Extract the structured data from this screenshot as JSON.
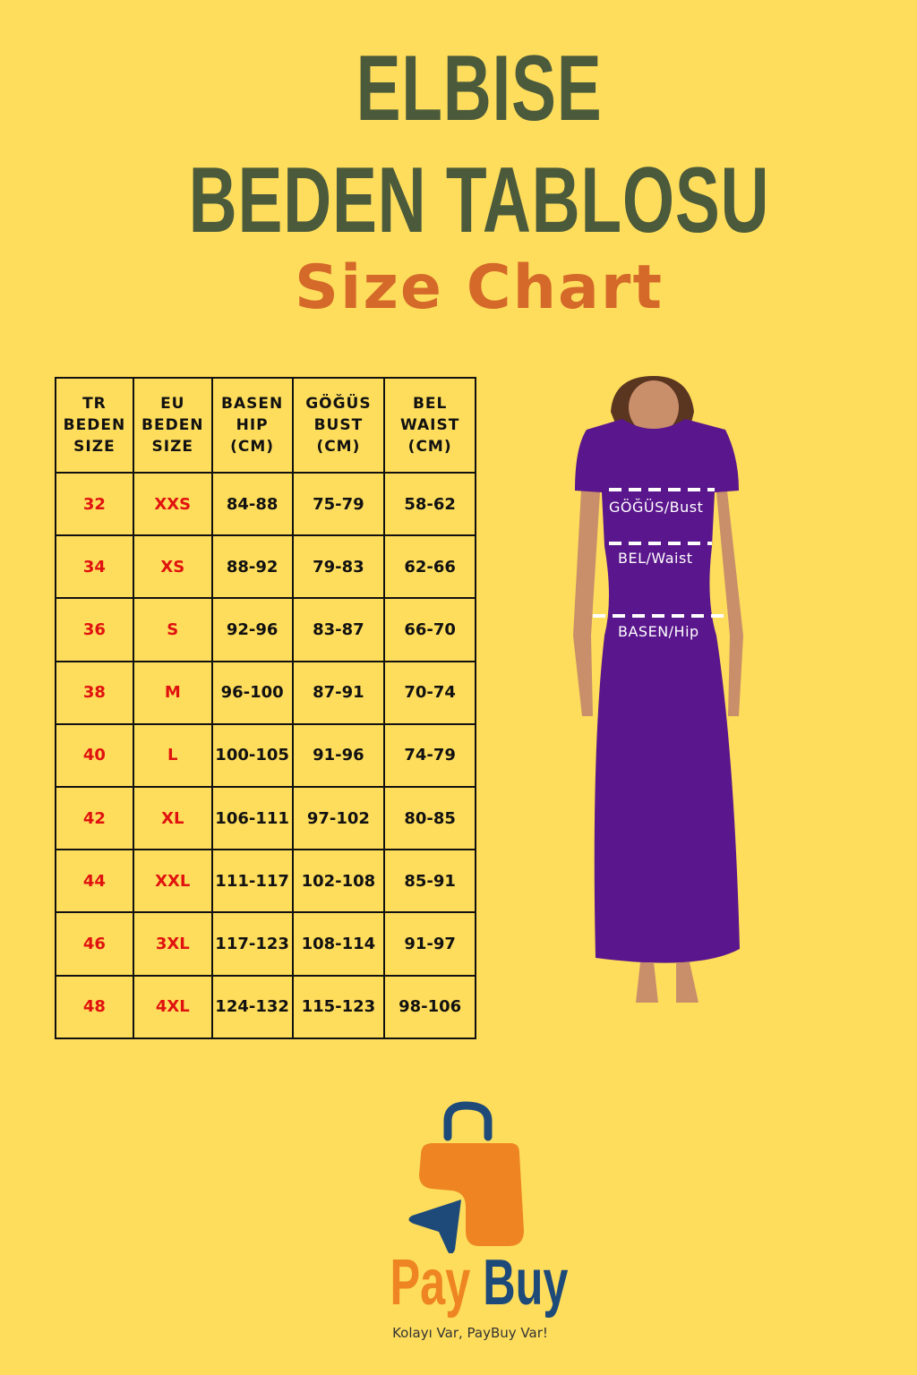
{
  "title": {
    "line1": "ELBISE",
    "line2": "BEDEN TABLOSU",
    "line3": "Size Chart"
  },
  "colors": {
    "background": "#fedd5c",
    "title": "#4b5a3b",
    "subtitle": "#d4692a",
    "size_text": "#e0120f",
    "dress": "#5a168c",
    "logo_orange": "#ee8522",
    "logo_blue": "#1e4a7a"
  },
  "table": {
    "headers": [
      [
        "TR",
        "BEDEN",
        "SIZE"
      ],
      [
        "EU",
        "BEDEN",
        "SIZE"
      ],
      [
        "BASEN",
        "HIP",
        "(CM)"
      ],
      [
        "GÖĞÜS",
        "BUST",
        "(CM)"
      ],
      [
        "BEL",
        "WAIST",
        "(CM)"
      ]
    ],
    "rows": [
      [
        "32",
        "XXS",
        "84-88",
        "75-79",
        "58-62"
      ],
      [
        "34",
        "XS",
        "88-92",
        "79-83",
        "62-66"
      ],
      [
        "36",
        "S",
        "92-96",
        "83-87",
        "66-70"
      ],
      [
        "38",
        "M",
        "96-100",
        "87-91",
        "70-74"
      ],
      [
        "40",
        "L",
        "100-105",
        "91-96",
        "74-79"
      ],
      [
        "42",
        "XL",
        "106-111",
        "97-102",
        "80-85"
      ],
      [
        "44",
        "XXL",
        "111-117",
        "102-108",
        "85-91"
      ],
      [
        "46",
        "3XL",
        "117-123",
        "108-114",
        "91-97"
      ],
      [
        "48",
        "4XL",
        "124-132",
        "115-123",
        "98-106"
      ]
    ]
  },
  "figure": {
    "bust_label": "GÖĞÜS/Bust",
    "waist_label": "BEL/Waist",
    "hip_label": "BASEN/Hip"
  },
  "logo": {
    "brand_pay": "Pay",
    "brand_buy": "Buy",
    "slogan": "Kolayı Var, PayBuy Var!"
  }
}
